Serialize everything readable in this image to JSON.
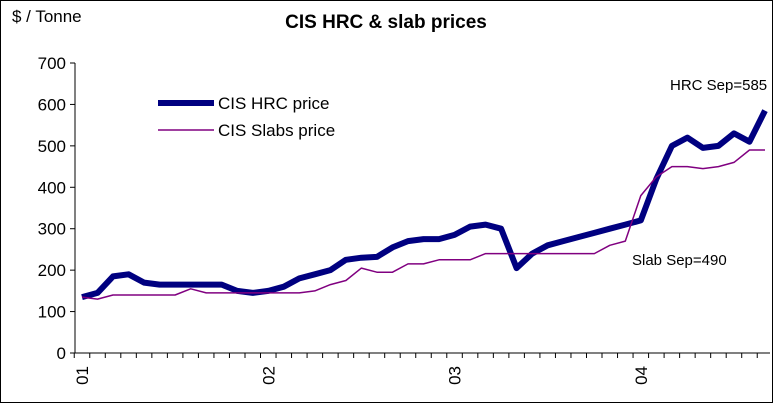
{
  "chart_data": {
    "type": "line",
    "title": "CIS HRC & slab prices",
    "y_label": "$ / Tonne",
    "categories": [
      "01",
      null,
      null,
      null,
      null,
      null,
      null,
      null,
      null,
      null,
      null,
      null,
      "02",
      null,
      null,
      null,
      null,
      null,
      null,
      null,
      null,
      null,
      null,
      null,
      "03",
      null,
      null,
      null,
      null,
      null,
      null,
      null,
      null,
      null,
      null,
      null,
      "04",
      null,
      null,
      null,
      null,
      null,
      null,
      null,
      null
    ],
    "series": [
      {
        "name": "CIS HRC price",
        "color": "#000080",
        "values": [
          135,
          145,
          185,
          190,
          170,
          165,
          165,
          165,
          165,
          165,
          150,
          145,
          150,
          160,
          180,
          190,
          200,
          225,
          230,
          232,
          255,
          270,
          275,
          275,
          285,
          305,
          310,
          300,
          205,
          240,
          260,
          270,
          280,
          290,
          300,
          310,
          320,
          420,
          500,
          520,
          495,
          500,
          530,
          510,
          585
        ]
      },
      {
        "name": "CIS Slabs price",
        "color": "#800080",
        "values": [
          135,
          130,
          140,
          140,
          140,
          140,
          140,
          155,
          145,
          145,
          145,
          145,
          145,
          145,
          145,
          150,
          165,
          175,
          205,
          195,
          195,
          215,
          215,
          225,
          225,
          225,
          240,
          240,
          240,
          240,
          240,
          240,
          240,
          240,
          260,
          270,
          380,
          425,
          450,
          450,
          445,
          450,
          460,
          490,
          490
        ]
      }
    ],
    "annotations": [
      "HRC Sep=585",
      "Slab Sep=490"
    ],
    "ylim": [
      0,
      700
    ],
    "yticks": [
      0,
      100,
      200,
      300,
      400,
      500,
      600,
      700
    ],
    "legend": "upper left"
  }
}
